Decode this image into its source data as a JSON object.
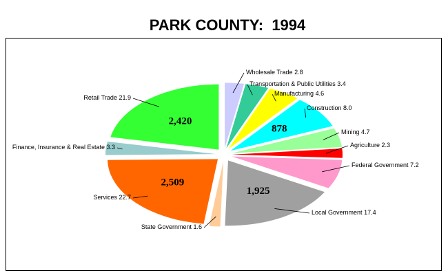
{
  "chart_data": {
    "type": "pie",
    "title": "PARK COUNTY:  1994",
    "categories": [
      "Wholesale Trade",
      "Transportation & Public Utilities",
      "Manufacturing",
      "Construction",
      "Mining",
      "Agriculture",
      "Federal Government",
      "Local Government",
      "State Government",
      "Services",
      "Finance, Insurance & Real Estate",
      "Retail Trade"
    ],
    "values": [
      2.8,
      3.4,
      4.6,
      8.0,
      4.7,
      2.3,
      7.2,
      17.4,
      1.6,
      22.7,
      3.3,
      21.9
    ],
    "value_labels": [
      "2.8",
      "3.4",
      "4.6",
      "8.0",
      "4.7",
      "2.3",
      "7.2",
      "17.4",
      "1.6",
      "22.7",
      "3.3",
      "21.9"
    ],
    "colors": [
      "#ccccff",
      "#33cc99",
      "#ffff00",
      "#00ffff",
      "#99ff99",
      "#ff0000",
      "#ff99cc",
      "#a0a0a0",
      "#ffcc99",
      "#ff6600",
      "#99cccc",
      "#33ff33"
    ],
    "counts": [
      null,
      null,
      null,
      878,
      null,
      null,
      null,
      1925,
      null,
      2509,
      null,
      2420
    ],
    "count_labels": [
      null,
      null,
      null,
      "878",
      null,
      null,
      null,
      "1,925",
      null,
      "2,509",
      null,
      "2,420"
    ]
  }
}
